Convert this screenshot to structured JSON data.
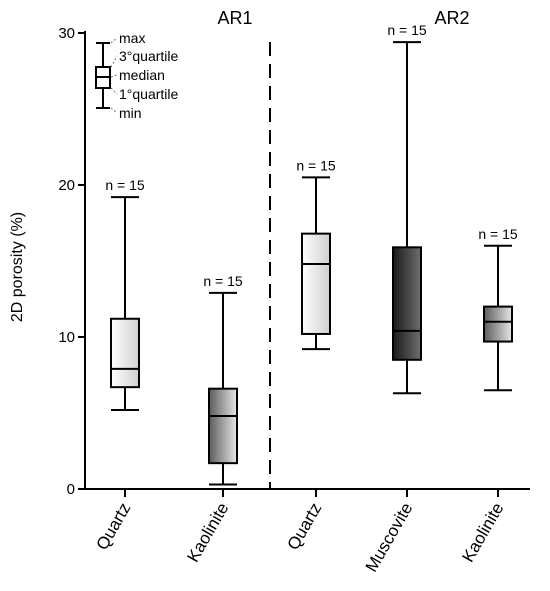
{
  "chart_data": {
    "type": "box",
    "ylabel": "2D porosity (%)",
    "ylim": [
      0,
      30
    ],
    "yticks": [
      0,
      10,
      20,
      30
    ],
    "groups": [
      {
        "label": "AR1",
        "x_start": 0,
        "x_end": 2
      },
      {
        "label": "AR2",
        "x_start": 2,
        "x_end": 5
      }
    ],
    "boxes": [
      {
        "category": "Quartz",
        "group": "AR1",
        "min": 5.2,
        "q1": 6.7,
        "median": 7.9,
        "q3": 11.2,
        "max": 19.2,
        "n_label": "n = 15",
        "fill": "light"
      },
      {
        "category": "Kaolinite",
        "group": "AR1",
        "min": 0.3,
        "q1": 1.7,
        "median": 4.8,
        "q3": 6.6,
        "max": 12.9,
        "n_label": "n = 15",
        "fill": "mid"
      },
      {
        "category": "Quartz",
        "group": "AR2",
        "min": 9.2,
        "q1": 10.2,
        "median": 14.8,
        "q3": 16.8,
        "max": 20.5,
        "n_label": "n = 15",
        "fill": "light"
      },
      {
        "category": "Muscovite",
        "group": "AR2",
        "min": 6.3,
        "q1": 8.5,
        "median": 10.4,
        "q3": 15.9,
        "max": 29.4,
        "n_label": "n = 15",
        "fill": "dark"
      },
      {
        "category": "Kaolinite",
        "group": "AR2",
        "min": 6.5,
        "q1": 9.7,
        "median": 11.0,
        "q3": 12.0,
        "max": 16.0,
        "n_label": "n = 15",
        "fill": "mid"
      }
    ],
    "legend": {
      "labels": [
        "max",
        "3°quartile",
        "median",
        "1°quartile",
        "min"
      ]
    },
    "separator": {
      "style": "dashed",
      "between": [
        "Kaolinite",
        "Quartz"
      ]
    }
  }
}
